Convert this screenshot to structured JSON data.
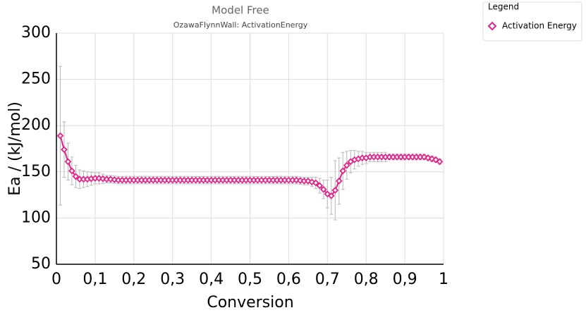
{
  "chart_data": {
    "type": "line",
    "title": "Model Free",
    "subtitle": "OzawaFlynnWall: ActivationEnergy",
    "x_label": "Conversion",
    "y_label": "Ea / (kJ/mol)",
    "legend_title": "Legend",
    "legend": "top-right",
    "grid": true,
    "xlim": [
      0,
      1
    ],
    "ylim": [
      50,
      300
    ],
    "xticks": [
      0,
      {
        "value": 0.1,
        "label": "0,1"
      },
      {
        "value": 0.2,
        "label": "0,2"
      },
      {
        "value": 0.3,
        "label": "0,3"
      },
      {
        "value": 0.4,
        "label": "0,4"
      },
      {
        "value": 0.5,
        "label": "0,5"
      },
      {
        "value": 0.6,
        "label": "0,6"
      },
      {
        "value": 0.7,
        "label": "0,7"
      },
      {
        "value": 0.8,
        "label": "0,8"
      },
      {
        "value": 0.9,
        "label": "0,9"
      },
      1
    ],
    "yticks": [
      50,
      100,
      150,
      200,
      250,
      300
    ],
    "x": [
      0.01,
      0.02,
      0.03,
      0.04,
      0.05,
      0.06,
      0.07,
      0.08,
      0.09,
      0.1,
      0.11,
      0.12,
      0.13,
      0.14,
      0.15,
      0.16,
      0.17,
      0.18,
      0.19,
      0.2,
      0.21,
      0.22,
      0.23,
      0.24,
      0.25,
      0.26,
      0.27,
      0.28,
      0.29,
      0.3,
      0.31,
      0.32,
      0.33,
      0.34,
      0.35,
      0.36,
      0.37,
      0.38,
      0.39,
      0.4,
      0.41,
      0.42,
      0.43,
      0.44,
      0.45,
      0.46,
      0.47,
      0.48,
      0.49,
      0.5,
      0.51,
      0.52,
      0.53,
      0.54,
      0.55,
      0.56,
      0.57,
      0.58,
      0.59,
      0.6,
      0.61,
      0.62,
      0.63,
      0.64,
      0.65,
      0.66,
      0.67,
      0.68,
      0.69,
      0.7,
      0.71,
      0.72,
      0.73,
      0.74,
      0.75,
      0.76,
      0.77,
      0.78,
      0.79,
      0.8,
      0.81,
      0.82,
      0.83,
      0.84,
      0.85,
      0.86,
      0.87,
      0.88,
      0.89,
      0.9,
      0.91,
      0.92,
      0.93,
      0.94,
      0.95,
      0.96,
      0.97,
      0.98,
      0.99
    ],
    "series": [
      {
        "name": "Activation Energy",
        "color": "#e0248a",
        "values": [
          189,
          174,
          161,
          151,
          145,
          142,
          142,
          142,
          142.5,
          143,
          143,
          142.5,
          142,
          142,
          141.5,
          141,
          141,
          141,
          141,
          141,
          141,
          141,
          141,
          141,
          141,
          141,
          141,
          141,
          141,
          141,
          141,
          141,
          141,
          141,
          141,
          141,
          141,
          141,
          141,
          141,
          141,
          141,
          141,
          141,
          141,
          141,
          141,
          141,
          141,
          141,
          141,
          141,
          141,
          141,
          141,
          141,
          141,
          141,
          141,
          141,
          141,
          141,
          140.5,
          140,
          140,
          139,
          138,
          135,
          131,
          126,
          124,
          130,
          140,
          151,
          157,
          161,
          163,
          164,
          165,
          165,
          166,
          166,
          166,
          166,
          166,
          166,
          166,
          166,
          166,
          166,
          166,
          166,
          166,
          166,
          166,
          165,
          164,
          163,
          161
        ],
        "errors": [
          75,
          30,
          20,
          15,
          12,
          10,
          9,
          8,
          7,
          6,
          6,
          5,
          4,
          4,
          4,
          4,
          4,
          4,
          4,
          4,
          4,
          4,
          4,
          4,
          4,
          4,
          4,
          4,
          4,
          4,
          4,
          4,
          4,
          4,
          4,
          4,
          4,
          4,
          4,
          4,
          4,
          4,
          4,
          4,
          4,
          4,
          4,
          4,
          4,
          4,
          4,
          4,
          4,
          4,
          4,
          4,
          4,
          4,
          4,
          4,
          4,
          4,
          4,
          4,
          4,
          5,
          6,
          8,
          10,
          15,
          20,
          32,
          25,
          20,
          15,
          12,
          10,
          8,
          7,
          6,
          5,
          5,
          5,
          5,
          5,
          3,
          3,
          3,
          3,
          3,
          3,
          3,
          3,
          3,
          3,
          3,
          3,
          3,
          3
        ]
      }
    ]
  }
}
